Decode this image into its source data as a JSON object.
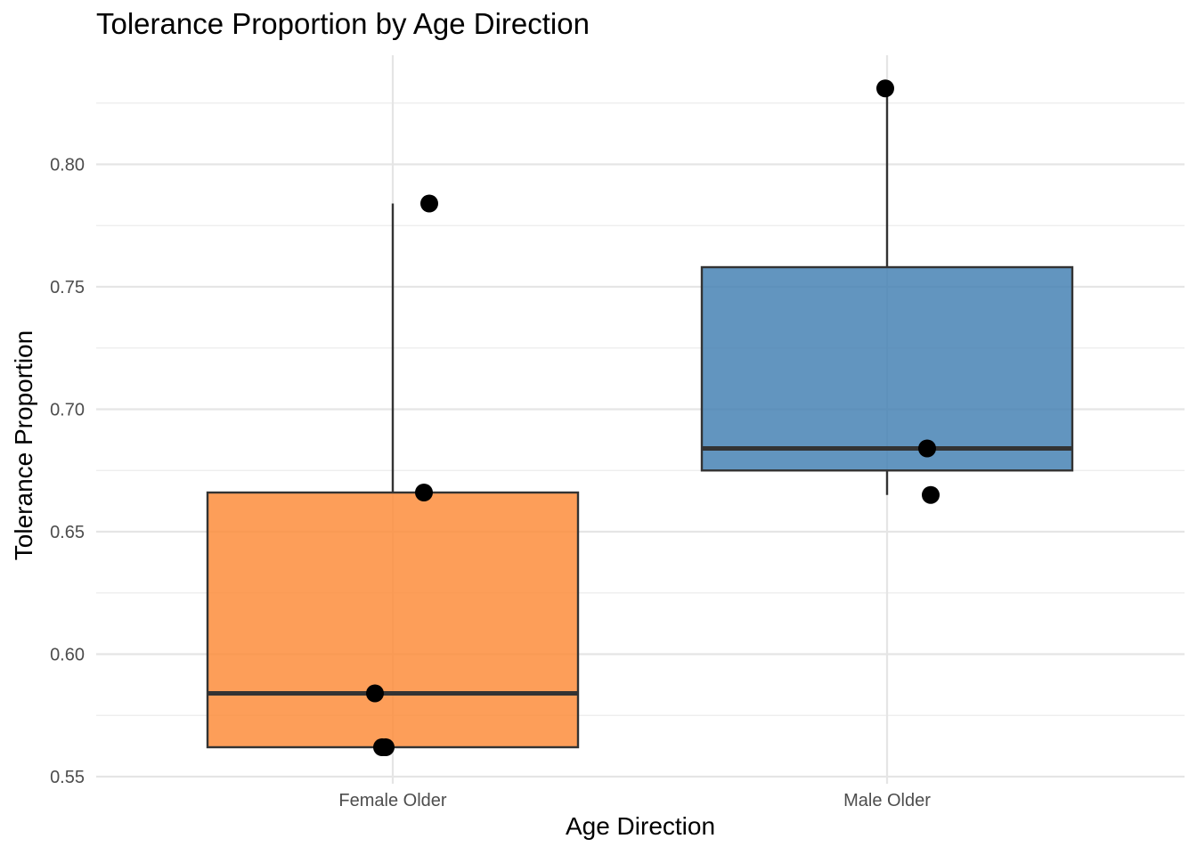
{
  "chart_data": {
    "type": "box",
    "title": "Tolerance Proportion by Age Direction",
    "xlabel": "Age Direction",
    "ylabel": "Tolerance Proportion",
    "ylim": [
      0.55,
      0.84
    ],
    "y_ticks": [
      0.55,
      0.6,
      0.65,
      0.7,
      0.75,
      0.8
    ],
    "y_tick_labels": [
      "0.55",
      "0.60",
      "0.65",
      "0.70",
      "0.75",
      "0.80"
    ],
    "grid": true,
    "legend": "none",
    "categories": [
      "Female Older",
      "Male Older"
    ],
    "boxes": [
      {
        "category": "Female Older",
        "color": "#fd8d3c",
        "min": 0.562,
        "q1": 0.562,
        "median": 0.584,
        "q3": 0.666,
        "max": 0.784,
        "points": [
          0.784,
          0.666,
          0.584,
          0.562,
          0.562
        ]
      },
      {
        "category": "Male Older",
        "color": "#4682b4",
        "min": 0.665,
        "q1": 0.675,
        "median": 0.684,
        "q3": 0.758,
        "max": 0.831,
        "points": [
          0.831,
          0.684,
          0.665
        ]
      }
    ]
  }
}
